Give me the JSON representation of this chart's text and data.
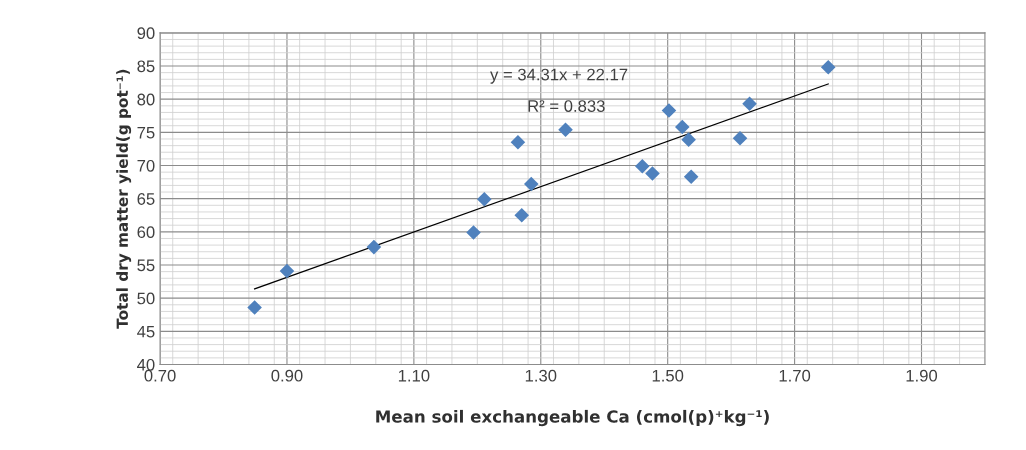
{
  "chart_data": {
    "type": "scatter",
    "xlabel": "Mean soil exchangeable Ca (cmol(p)⁺kg⁻¹)",
    "ylabel": "Total dry matter yield(g pot⁻¹)",
    "series": [
      {
        "color": "#4f81bd",
        "marker": "diamond",
        "x": [
          0.849,
          0.9,
          1.037,
          1.194,
          1.211,
          1.264,
          1.27,
          1.285,
          1.339,
          1.46,
          1.476,
          1.502,
          1.523,
          1.533,
          1.537,
          1.614,
          1.629,
          1.753
        ],
        "values": [
          48.6,
          54.1,
          57.7,
          59.9,
          64.9,
          73.5,
          62.5,
          67.2,
          75.4,
          69.9,
          68.8,
          78.3,
          75.8,
          73.9,
          68.3,
          74.1,
          79.3,
          84.8
        ]
      },
      {
        "type": "line",
        "color": "#000000",
        "marker": "none",
        "line_style": "solid",
        "x": [
          0.849,
          1.753
        ],
        "values": [
          51.4,
          82.3
        ]
      }
    ],
    "annotations": [
      "y = 34.31x + 22.17",
      "R² = 0.833"
    ],
    "xlim": [
      0.7,
      2.0
    ],
    "xticks": [
      {
        "value": 0.7,
        "label": "0.70"
      },
      {
        "value": 0.9,
        "label": "0.90"
      },
      {
        "value": 1.1,
        "label": "1.10"
      },
      {
        "value": 1.3,
        "label": "1.30"
      },
      {
        "value": 1.5,
        "label": "1.50"
      },
      {
        "value": 1.7,
        "label": "1.70"
      },
      {
        "value": 1.9,
        "label": "1.90"
      }
    ],
    "ylim": [
      40,
      90
    ],
    "yticks": [
      40,
      45,
      50,
      55,
      60,
      65,
      70,
      75,
      80,
      85,
      90
    ],
    "grid": true,
    "legend": false
  }
}
